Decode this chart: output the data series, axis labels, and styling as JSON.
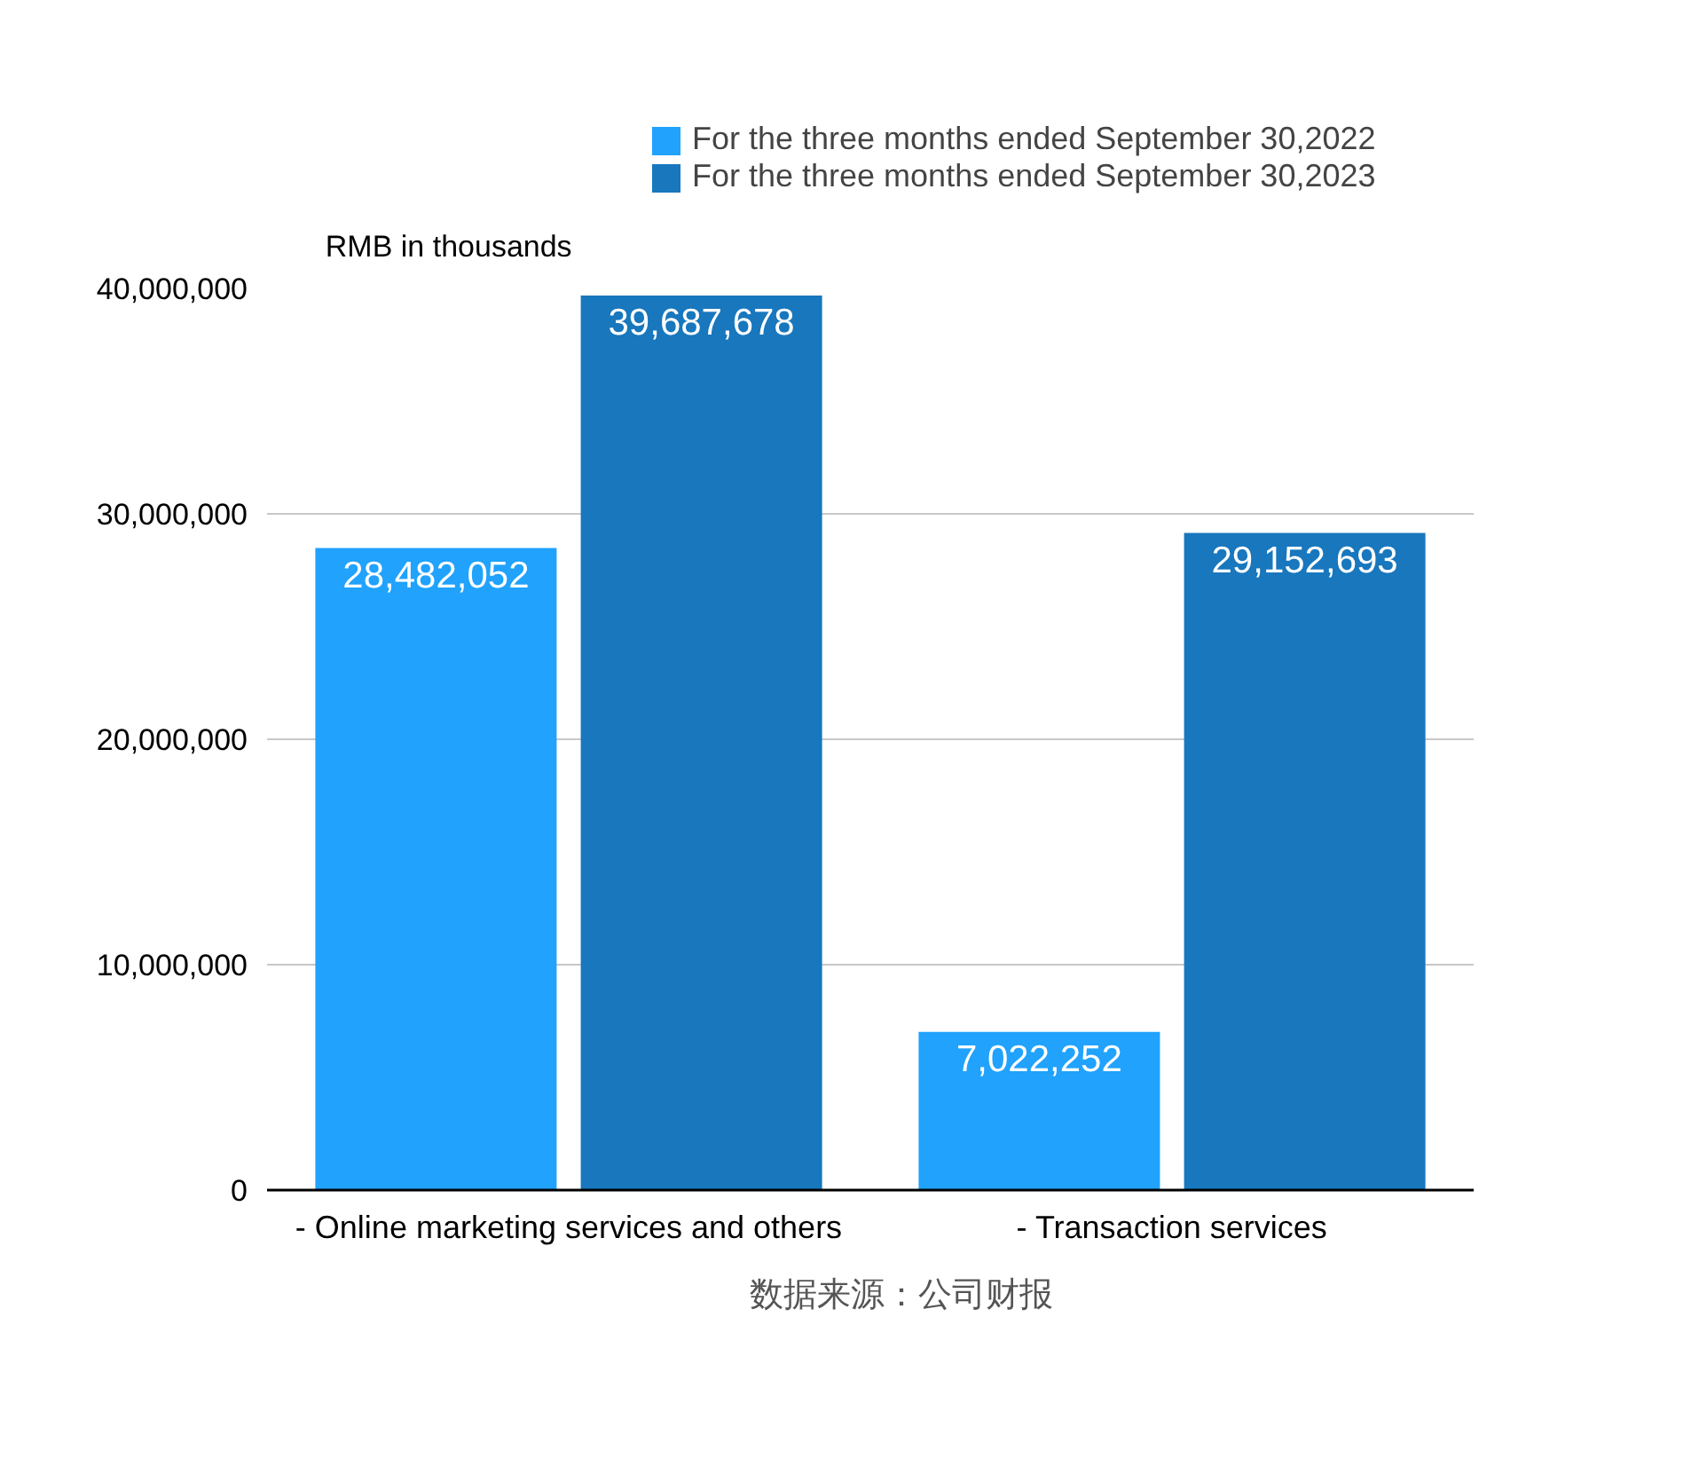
{
  "chart_data": {
    "type": "bar",
    "ylabel": "RMB in thousands",
    "categories": [
      "- Online marketing services and others",
      "- Transaction services"
    ],
    "series": [
      {
        "name": "For the three months ended September 30,2022",
        "color": "#20a2fd",
        "values": [
          28482052,
          7022252
        ],
        "value_labels": [
          "28,482,052",
          "7,022,252"
        ]
      },
      {
        "name": "For the three months ended September 30,2023",
        "color": "#1877bd",
        "values": [
          39687678,
          29152693
        ],
        "value_labels": [
          "39,687,678",
          "29,152,693"
        ]
      }
    ],
    "ylim": [
      0,
      40000000
    ],
    "yticks": [
      {
        "value": 0,
        "label": "0"
      },
      {
        "value": 10000000,
        "label": "10,000,000"
      },
      {
        "value": 20000000,
        "label": "20,000,000"
      },
      {
        "value": 30000000,
        "label": "30,000,000"
      },
      {
        "value": 40000000,
        "label": "40,000,000"
      }
    ],
    "grid": "y",
    "legend": "top",
    "annotations": [
      "数据来源：公司财报"
    ]
  }
}
